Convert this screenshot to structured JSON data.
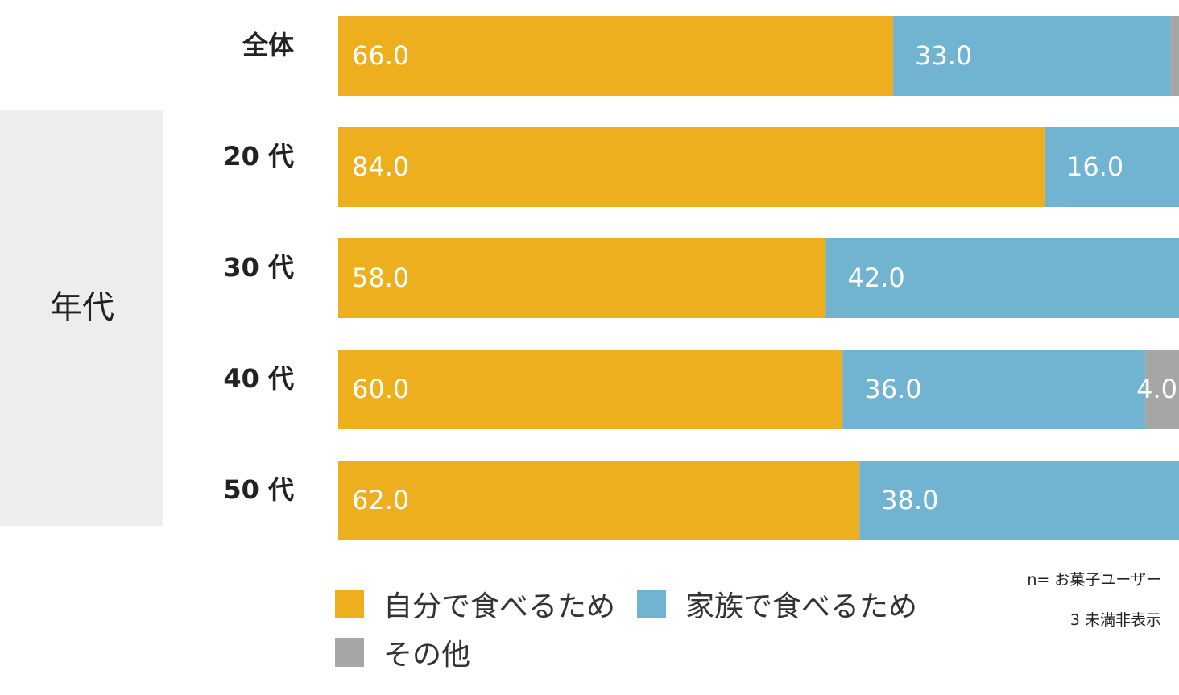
{
  "colors": {
    "self": "#EDAF1D",
    "family": "#70B4D1",
    "other": "#A6A6A6",
    "group_panel": "#ECEEEC",
    "label_text": "#FFFFFF",
    "category_text": "#222222"
  },
  "group_label": "年代",
  "notes": {
    "base": "n= お菓子ユーザー",
    "hidden": "3 未満非表示"
  },
  "chart_data": {
    "type": "bar",
    "orientation": "horizontal",
    "stacked": true,
    "xlim": [
      0,
      100
    ],
    "title": "",
    "categories": [
      "全体",
      "20 代",
      "30 代",
      "40 代",
      "50 代"
    ],
    "series": [
      {
        "name": "自分で食べるため",
        "values": [
          66.0,
          84.0,
          58.0,
          60.0,
          62.0
        ]
      },
      {
        "name": "家族で食べるため",
        "values": [
          33.0,
          16.0,
          42.0,
          36.0,
          38.0
        ]
      },
      {
        "name": "その他",
        "values": [
          1.0,
          0,
          0,
          4.0,
          0
        ]
      }
    ],
    "data_labels": [
      [
        "66.0",
        "84.0",
        "58.0",
        "60.0",
        "62.0"
      ],
      [
        "33.0",
        "16.0",
        "42.0",
        "36.0",
        "38.0"
      ],
      [
        "",
        "",
        "",
        "4.0",
        ""
      ]
    ],
    "legend_position": "bottom-left"
  }
}
